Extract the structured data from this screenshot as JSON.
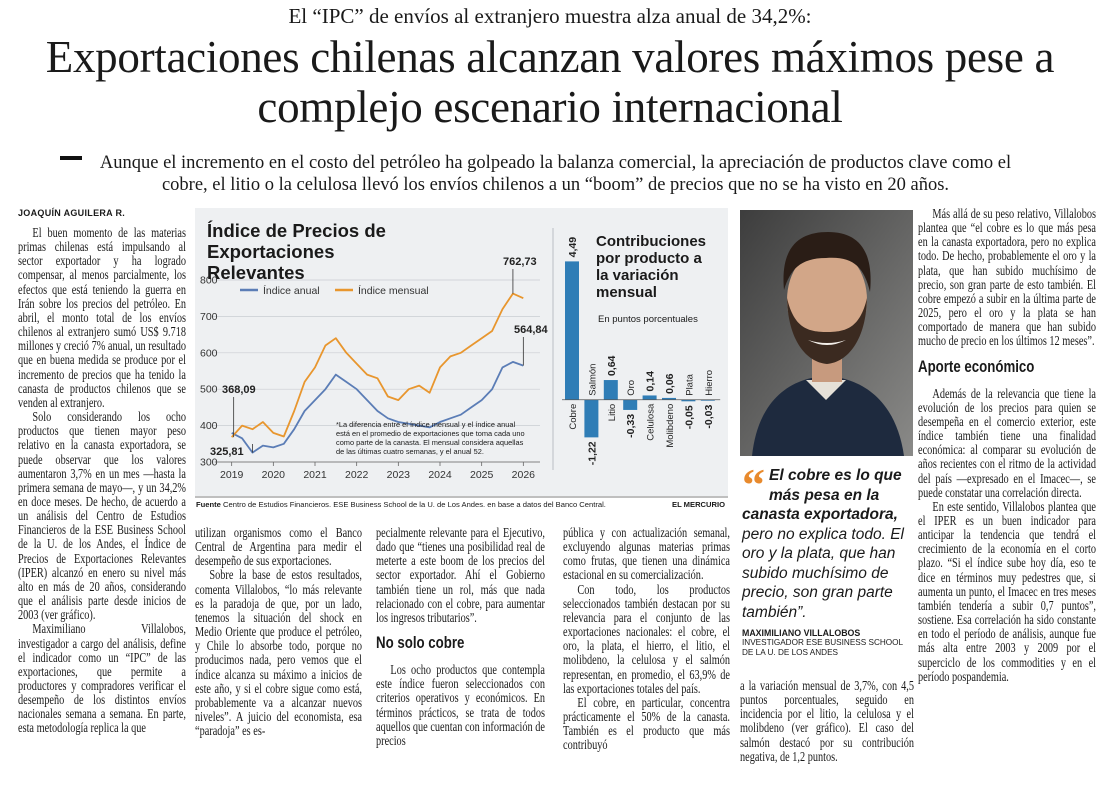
{
  "kicker": "El “IPC” de envíos al extranjero muestra alza anual de 34,2%:",
  "title": "Exportaciones chilenas alcanzan valores máximos pese a complejo escenario internacional",
  "deck": "Aunque el incremento en el costo del petróleo ha golpeado la balanza comercial, la apreciación de productos clave como el cobre, el litio o la celulosa llevó los envíos chilenos a un “boom” de precios que no se ha visto en 20 años.",
  "byline": "JOAQUÍN AGUILERA R.",
  "columns": [
    [
      {
        "text": "El buen momento de las materias primas chilenas está impulsando al sector exportador y ha logrado compensar, al menos parcialmente, los efectos que está teniendo la guerra en Irán sobre los precios del petróleo. En abril, el monto total de los envíos chilenos al extranjero sumó US$ 9.718 millones y creció 7% anual, un resultado que en buena medida se produce por el incremento de precios que ha tenido la canasta de productos chilenos que se venden al extranjero."
      },
      {
        "text": "Solo considerando los ocho productos que tienen mayor peso relativo en la canasta exportadora, se puede observar que los valores aumentaron 3,7% en un mes —hasta la primera semana de mayo—, y un 34,2% en doce meses. De hecho, de acuerdo a un análisis del Centro de Estudios Financieros de la ESE Business School de la U. de los Andes, el Índice de Precios de Exportaciones Relevantes (IPER) alcanzó en enero su nivel más alto en más de 20 años, considerando que el análisis parte desde inicios de 2003 (ver gráfico)."
      },
      {
        "text": "Maximiliano Villalobos, investigador a cargo del análisis, define el indicador como un “IPC” de las exportaciones, que permite a productores y compradores verificar el desempeño de los distintos envíos nacionales semana a semana. En parte, esta metodología replica la que"
      }
    ],
    [
      {
        "text": "utilizan organismos como el Banco Central de Argentina para medir el desempeño de sus exportaciones."
      },
      {
        "text": "Sobre la base de estos resultados, comenta Villalobos, “lo más relevante es la paradoja de que, por un lado, tenemos la situación del shock en Medio Oriente que produce el petróleo, y Chile lo absorbe todo, porque no producimos nada, pero vemos que el índice alcanza su máximo a inicios de este año, y si el cobre sigue como está, probablemente va a alcanzar nuevos niveles”. A juicio del economista, esa “paradoja” es es-"
      }
    ],
    [
      {
        "text": "pecialmente relevante para el Ejecutivo, dado que “tienes una posibilidad real de meterte a este boom de los precios del sector exportador. Ahí el Gobierno también tiene un rol, más que nada relacionado con el cobre, para aumentar los ingresos tributarios”."
      },
      {
        "heading": "No solo cobre"
      },
      {
        "text": "Los ocho productos que contempla este índice fueron seleccionados con criterios operativos y económicos. En términos prácticos, se trata de todos aquellos que cuentan con información de precios"
      }
    ],
    [
      {
        "text": "pública y con actualización semanal, excluyendo algunas materias primas como frutas, que tienen una dinámica estacional en su comercialización."
      },
      {
        "text": "Con todo, los productos seleccionados también destacan por su relevancia para el conjunto de las exportaciones nacionales: el cobre, el oro, la plata, el hierro, el litio, el molibdeno, la celulosa y el salmón representan, en promedio, el 63,9% de las exportaciones totales del país."
      },
      {
        "text": "El cobre, en particular, concentra prácticamente el 50% de la canasta. También es el producto que más contribuyó"
      }
    ],
    [
      {
        "text": "a la variación mensual de 3,7%, con 4,5 puntos porcentuales, seguido en incidencia por el litio, la celulosa y el molibdeno (ver gráfico). El caso del salmón destacó por su contribución negativa, de 1,2 puntos."
      }
    ],
    [
      {
        "text": "Más allá de su peso relativo, Villalobos plantea que “el cobre es lo que más pesa en la canasta exportadora, pero no explica todo. De hecho, probablemente el oro y la plata, que han subido muchísimo de precio, son gran parte de esto también. El cobre empezó a subir en la última parte de 2025, pero el oro y la plata se han comportado de manera que han subido mucho de precio en los últimos 12 meses”."
      },
      {
        "heading": "Aporte económico"
      },
      {
        "text": "Además de la relevancia que tiene la evolución de los precios para quien se desempeña en el comercio exterior, este índice también tiene una finalidad económica: al comparar su evolución de años recientes con el ritmo de la actividad del país —expresado en el Imacec—, se puede constatar una correlación directa."
      },
      {
        "text": "En este sentido, Villalobos plantea que el IPER es un buen indicador para anticipar la tendencia que tendrá el crecimiento de la economía en el corto plazo. “Si el índice sube hoy día, eso te dice en términos muy pedestres que, si aumenta un punto, el Imacec en tres meses también tendería a subir 0,7 puntos”, sostiene. Esa correlación ha sido constante en todo el período de análisis, aunque fue más alta entre 2003 y 2009 por el superciclo de los commodities y en el período pospandemia."
      }
    ]
  ],
  "quote": {
    "strong": "El cobre es lo que más pesa en la canasta exportadora,",
    "rest": "pero no explica todo. El oro y la plata, que han subido muchísimo de precio, son gran parte también”."
  },
  "caption": {
    "name": "MAXIMILIANO VILLALOBOS",
    "role": "INVESTIGADOR ESE BUSINESS SCHOOL DE LA U. DE LOS ANDES"
  },
  "source": {
    "label": "Fuente",
    "text": "Centro de Estudios Financieros. ESE Business School de la U. de Los Andes. en base a datos del Banco Central.",
    "brand": "EL MERCURIO"
  },
  "chart_data": [
    {
      "type": "line",
      "title": "Índice de Precios de Exportaciones Relevantes",
      "x": [
        2019,
        2019.25,
        2019.5,
        2019.75,
        2020,
        2020.25,
        2020.5,
        2020.75,
        2021,
        2021.25,
        2021.5,
        2021.75,
        2022,
        2022.25,
        2022.5,
        2022.75,
        2023,
        2023.25,
        2023.5,
        2023.75,
        2024,
        2024.25,
        2024.5,
        2024.75,
        2025,
        2025.25,
        2025.5,
        2025.75,
        2026
      ],
      "xlim": [
        2018.6,
        2026.4
      ],
      "xticks": [
        2019,
        2020,
        2021,
        2022,
        2023,
        2024,
        2025,
        2026
      ],
      "ylim": [
        300,
        800
      ],
      "yticks": [
        300,
        400,
        500,
        600,
        700,
        800
      ],
      "grid": true,
      "series": [
        {
          "name": "Índice anual",
          "color": "#5b7db6",
          "values": [
            380,
            365,
            325.81,
            345,
            340,
            350,
            390,
            440,
            470,
            500,
            540,
            520,
            500,
            470,
            440,
            420,
            410,
            405,
            400,
            395,
            410,
            420,
            430,
            450,
            470,
            500,
            560,
            575,
            564.84
          ]
        },
        {
          "name": "Índice mensual",
          "color": "#e8962e",
          "values": [
            368.09,
            400,
            390,
            410,
            380,
            370,
            440,
            520,
            560,
            620,
            640,
            600,
            570,
            540,
            530,
            480,
            470,
            500,
            510,
            490,
            560,
            590,
            600,
            620,
            640,
            660,
            720,
            762.73,
            750
          ]
        }
      ],
      "annotations": [
        {
          "label": "368,09",
          "value": 368.09
        },
        {
          "label": "325,81",
          "value": 325.81
        },
        {
          "label": "762,73",
          "value": 762.73
        },
        {
          "label": "564,84",
          "value": 564.84
        }
      ],
      "note": "*La diferencia entre el índice mensual y el índice anual está en el promedio de exportaciones que toma cada uno como parte de la canasta. El mensual considera aquellas de las últimas cuatro semanas, y el anual 52."
    },
    {
      "type": "bar",
      "title": "Contribuciones por producto a la variación mensual",
      "subtitle": "En puntos porcentuales",
      "categories": [
        "Cobre",
        "Salmón",
        "Litio",
        "Oro",
        "Celulosa",
        "Molibdeno",
        "Plata",
        "Hierro"
      ],
      "values": [
        4.49,
        -1.22,
        0.64,
        -0.33,
        0.14,
        0.06,
        -0.05,
        -0.03
      ],
      "value_labels": [
        "4,49",
        "-1,22",
        "0,64",
        "-0,33",
        "0,14",
        "0,06",
        "-0,05",
        "-0,03"
      ],
      "color": "#2f7db6",
      "ylim": [
        -1.5,
        4.6
      ]
    }
  ]
}
